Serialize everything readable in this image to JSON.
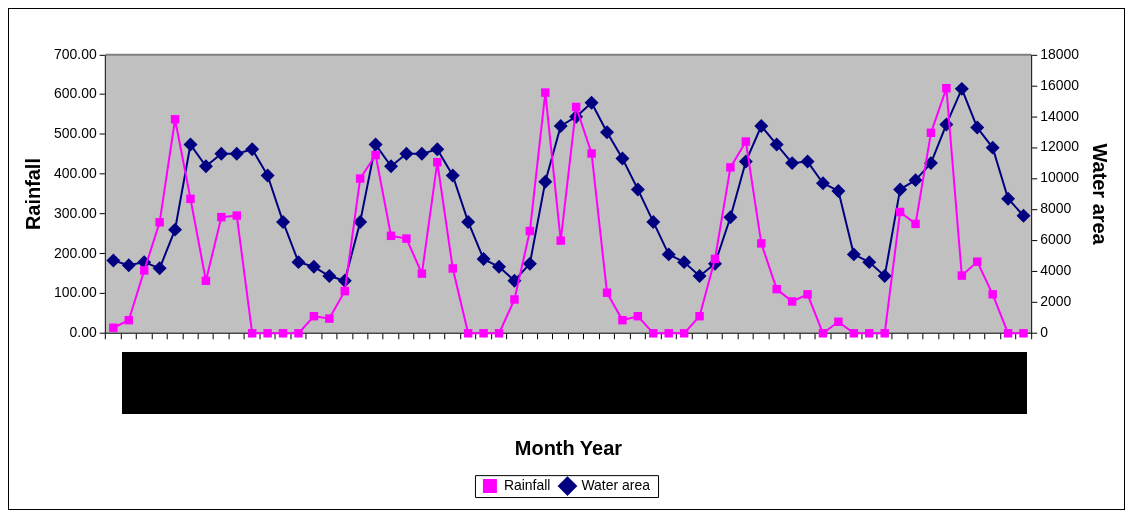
{
  "chart_data": {
    "type": "line",
    "xlabel": "Month Year",
    "ylabel": "Rainfall",
    "y2label": "Water area",
    "categories": [
      null,
      null,
      null,
      null,
      null,
      null,
      null,
      null,
      null,
      null,
      null,
      null,
      null,
      null,
      null,
      null,
      null,
      null,
      null,
      null,
      null,
      null,
      null,
      null,
      null,
      null,
      null,
      null,
      null,
      null,
      null,
      null,
      null,
      null,
      null,
      null,
      null,
      null,
      null,
      null,
      null,
      null,
      null,
      null,
      null,
      null,
      null,
      null,
      null,
      null,
      null,
      null,
      null,
      null,
      null,
      null,
      null,
      null,
      null,
      null
    ],
    "series": [
      {
        "name": "Rainfall",
        "color": "#ff00ff",
        "marker": "square",
        "values": [
          14,
          33,
          158,
          279,
          538,
          338,
          132,
          292,
          296,
          0,
          0,
          0,
          0,
          43,
          37,
          106,
          389,
          448,
          245,
          238,
          150,
          430,
          163,
          0,
          0,
          0,
          85,
          257,
          605,
          233,
          569,
          452,
          102,
          33,
          43,
          0,
          0,
          0,
          43,
          187,
          417,
          482,
          226,
          111,
          80,
          98,
          0,
          29,
          0,
          0,
          0,
          305,
          275,
          504,
          616,
          145,
          180,
          98,
          0,
          0
        ]
      },
      {
        "name": "Water area",
        "color": "#000080",
        "marker": "diamond",
        "axis": "y2",
        "values": [
          4700,
          4400,
          4600,
          4200,
          6700,
          12200,
          10800,
          11600,
          11600,
          11900,
          10200,
          7200,
          4600,
          4300,
          3700,
          3400,
          7200,
          12200,
          10800,
          11600,
          11600,
          11900,
          10200,
          7200,
          4800,
          4300,
          3400,
          4500,
          9800,
          13400,
          14000,
          14900,
          13000,
          11300,
          9300,
          7200,
          5100,
          4600,
          3700,
          4500,
          7500,
          11100,
          13400,
          12200,
          11000,
          11100,
          9700,
          9200,
          5100,
          4600,
          3700,
          9300,
          9900,
          11000,
          13500,
          15800,
          13300,
          12000,
          8700,
          7600
        ]
      }
    ],
    "ylim": [
      0,
      700
    ],
    "yticks": [
      {
        "value": 0,
        "label": "0.00"
      },
      {
        "value": 100,
        "label": "100.00"
      },
      {
        "value": 200,
        "label": "200.00"
      },
      {
        "value": 300,
        "label": "300.00"
      },
      {
        "value": 400,
        "label": "400.00"
      },
      {
        "value": 500,
        "label": "500.00"
      },
      {
        "value": 600,
        "label": "600.00"
      },
      {
        "value": 700,
        "label": "700.00"
      }
    ],
    "y2lim": [
      0,
      18000
    ],
    "y2ticks": [
      0,
      2000,
      4000,
      6000,
      8000,
      10000,
      12000,
      14000,
      16000,
      18000
    ],
    "grid": false,
    "legend": "bottom",
    "line_style": "solid"
  }
}
